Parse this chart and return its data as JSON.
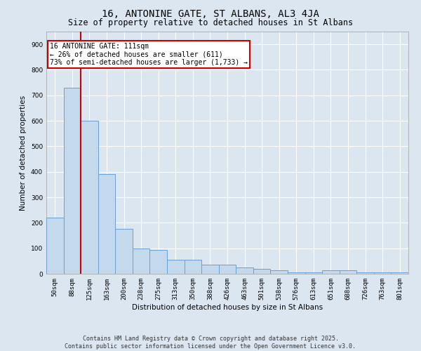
{
  "title": "16, ANTONINE GATE, ST ALBANS, AL3 4JA",
  "subtitle": "Size of property relative to detached houses in St Albans",
  "xlabel": "Distribution of detached houses by size in St Albans",
  "ylabel": "Number of detached properties",
  "annotation_line1": "16 ANTONINE GATE: 111sqm",
  "annotation_line2": "← 26% of detached houses are smaller (611)",
  "annotation_line3": "73% of semi-detached houses are larger (1,733) →",
  "footer_line1": "Contains HM Land Registry data © Crown copyright and database right 2025.",
  "footer_line2": "Contains public sector information licensed under the Open Government Licence v3.0.",
  "bar_labels": [
    "50sqm",
    "88sqm",
    "125sqm",
    "163sqm",
    "200sqm",
    "238sqm",
    "275sqm",
    "313sqm",
    "350sqm",
    "388sqm",
    "426sqm",
    "463sqm",
    "501sqm",
    "538sqm",
    "576sqm",
    "613sqm",
    "651sqm",
    "688sqm",
    "726sqm",
    "763sqm",
    "801sqm"
  ],
  "bar_values": [
    220,
    730,
    600,
    390,
    175,
    100,
    95,
    55,
    55,
    35,
    35,
    25,
    20,
    15,
    5,
    5,
    15,
    15,
    5,
    5,
    5
  ],
  "bar_color": "#c5d9ed",
  "bar_edge_color": "#6a9fd8",
  "red_line_x": 1.5,
  "ylim": [
    0,
    950
  ],
  "yticks": [
    0,
    100,
    200,
    300,
    400,
    500,
    600,
    700,
    800,
    900
  ],
  "background_color": "#dce6f1",
  "plot_bg_color": "#dce6f1",
  "grid_color": "#ffffff",
  "annotation_box_color": "#ffffff",
  "annotation_box_edge": "#cc0000",
  "red_line_color": "#cc0000",
  "title_fontsize": 10,
  "subtitle_fontsize": 8.5,
  "tick_fontsize": 6.5,
  "label_fontsize": 7.5,
  "annotation_fontsize": 7,
  "footer_fontsize": 6
}
